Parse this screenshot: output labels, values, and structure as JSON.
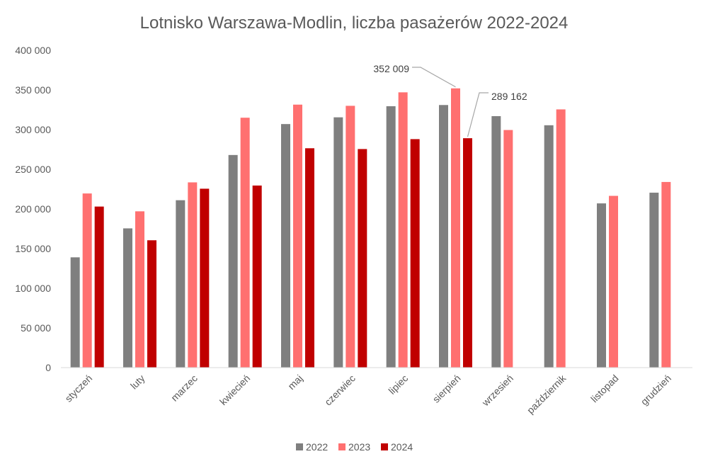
{
  "chart_data": {
    "type": "bar",
    "title": "Lotnisko Warszawa-Modlin, liczba pasażerów 2022-2024",
    "xlabel": "",
    "ylabel": "",
    "ylim": [
      0,
      400000
    ],
    "yticks": [
      0,
      50000,
      100000,
      150000,
      200000,
      250000,
      300000,
      350000,
      400000
    ],
    "ytick_labels": [
      "0",
      "50 000",
      "100 000",
      "150 000",
      "200 000",
      "250 000",
      "300 000",
      "350 000",
      "400 000"
    ],
    "grid": false,
    "legend_position": "bottom",
    "categories": [
      "styczeń",
      "luty",
      "marzec",
      "kwiecień",
      "maj",
      "czerwiec",
      "lipiec",
      "sierpień",
      "wrzesień",
      "październik",
      "listopad",
      "grudzień"
    ],
    "series": [
      {
        "name": "2022",
        "color": "#7f7f7f",
        "values": [
          139000,
          175500,
          211000,
          268000,
          307000,
          315500,
          329500,
          331000,
          317000,
          305500,
          207000,
          220500
        ]
      },
      {
        "name": "2023",
        "color": "#ff7070",
        "values": [
          219500,
          197000,
          233500,
          315000,
          331500,
          330000,
          347000,
          352009,
          299500,
          325500,
          216500,
          234000
        ]
      },
      {
        "name": "2024",
        "color": "#c00000",
        "values": [
          203000,
          160500,
          225500,
          229500,
          276500,
          275500,
          288000,
          289162,
          null,
          null,
          null,
          null
        ]
      }
    ],
    "annotations": [
      {
        "text": "352 009",
        "series": "2023",
        "category": "sierpień"
      },
      {
        "text": "289 162",
        "series": "2024",
        "category": "sierpień"
      }
    ]
  }
}
